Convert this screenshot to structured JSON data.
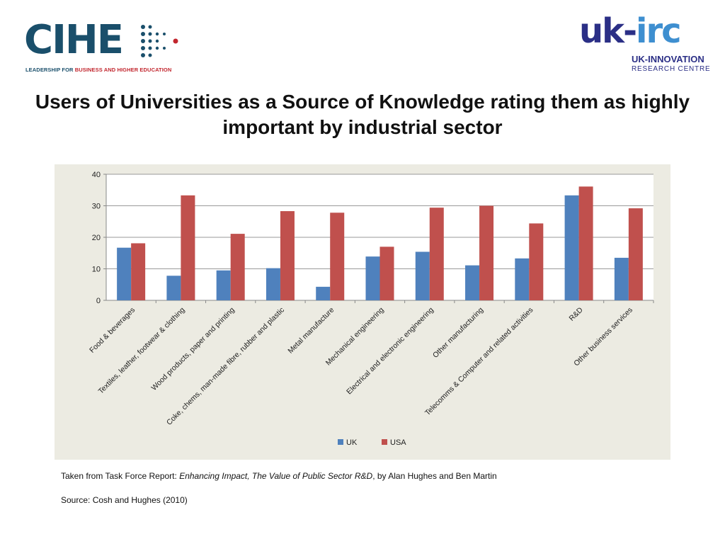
{
  "logos": {
    "cihe": {
      "name": "CIHE",
      "tagline_part1": "LEADERSHIP FOR ",
      "tagline_part2": "BUSINESS AND HIGHER EDUCATION",
      "colors": {
        "primary": "#1a4f6b",
        "accent": "#c2262e"
      }
    },
    "ukirc": {
      "name_part1": "uk-",
      "name_part2": "irc",
      "full_name": "UK-INNOVATION",
      "sub_name": "RESEARCH CENTRE",
      "colors": {
        "primary": "#2b2f86",
        "accent": "#3e8fd0"
      }
    }
  },
  "slide": {
    "title": "Users of Universities as a Source of Knowledge rating them as highly important by industrial sector"
  },
  "chart_data": {
    "type": "bar",
    "categories": [
      "Food & beverages",
      "Textiles, leather, footwear & clothing",
      "Wood products, paper and printing",
      "Coke, chems, man-made fibre, rubber and plastic",
      "Metal manufacture",
      "Mechanical engineering",
      "Electrical and electronic engineering",
      "Other manufacturing",
      "Telecomms & Computer and related activities",
      "R&D",
      "Other business services"
    ],
    "series": [
      {
        "name": "UK",
        "color": "#4f81bd",
        "values": [
          16.7,
          7.8,
          9.5,
          10.2,
          4.3,
          13.9,
          15.4,
          11.1,
          13.3,
          33.3,
          13.5
        ]
      },
      {
        "name": "USA",
        "color": "#c0504d",
        "values": [
          18.1,
          33.3,
          21.1,
          28.3,
          27.8,
          17.0,
          29.4,
          30.0,
          24.4,
          36.1,
          29.2
        ]
      }
    ],
    "ylim": [
      0,
      40
    ],
    "yticks": [
      0,
      10,
      20,
      30,
      40
    ],
    "legend_position": "bottom",
    "grid": true,
    "background": "#ecebe2"
  },
  "footnotes": {
    "line1_prefix": "Taken from Task Force Report: ",
    "line1_italic": "Enhancing Impact, The Value of Public Sector R&D",
    "line1_suffix": ", by Alan Hughes and Ben Martin",
    "line2": "Source: Cosh and Hughes (2010)"
  }
}
